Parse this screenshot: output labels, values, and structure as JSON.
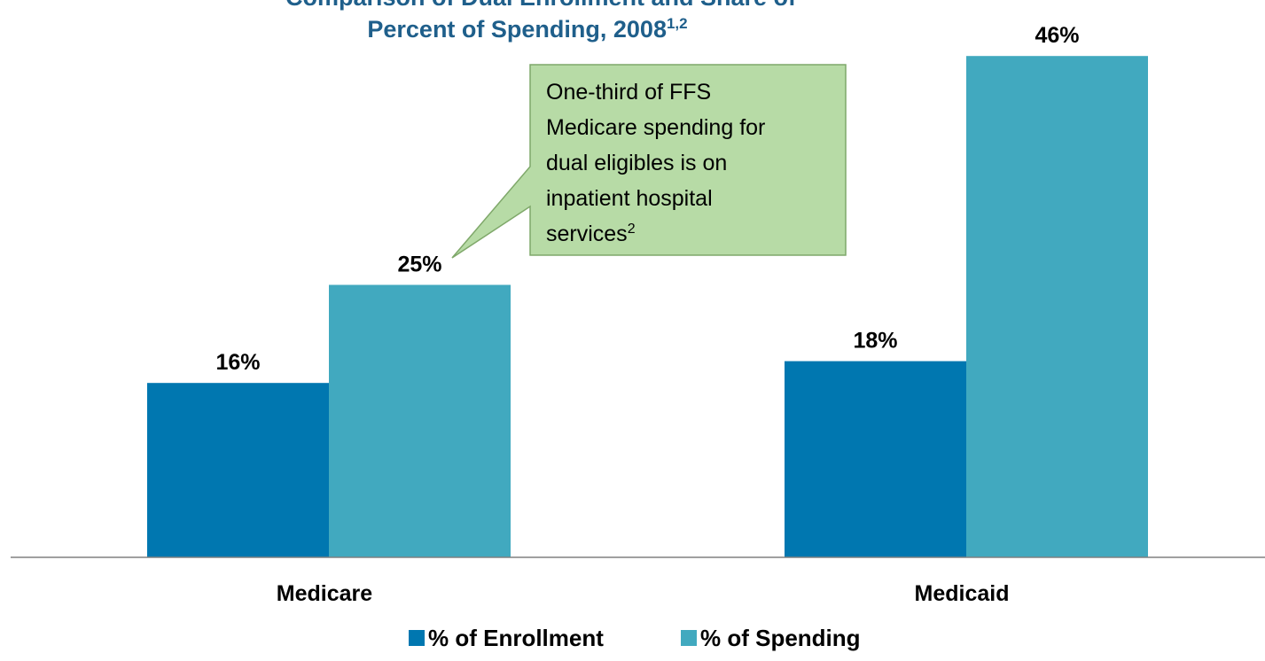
{
  "chart_data": {
    "type": "bar",
    "title_line1": "Comparison of Dual Enrollment and Share of",
    "title_line2": "Percent of Spending, 2008",
    "title_superscript": "1,2",
    "categories": [
      "Medicare",
      "Medicaid"
    ],
    "series": [
      {
        "name": "% of Enrollment",
        "values": [
          16,
          18
        ],
        "labels": [
          "16%",
          "18%"
        ],
        "color": "#0077b0"
      },
      {
        "name": "% of Spending",
        "values": [
          25,
          46
        ],
        "labels": [
          "25%",
          "46%"
        ],
        "color": "#41a9bf"
      }
    ],
    "ylim": [
      0,
      50
    ],
    "grid": false,
    "legend_position": "bottom-center",
    "annotation": {
      "lines": [
        "One-third of FFS",
        "Medicare spending for",
        "dual eligibles is on",
        "inpatient hospital",
        "services"
      ],
      "superscript": "2",
      "background": "#b7dba6",
      "border": "#7fa86a",
      "points_to": "Medicare % of Spending"
    }
  }
}
